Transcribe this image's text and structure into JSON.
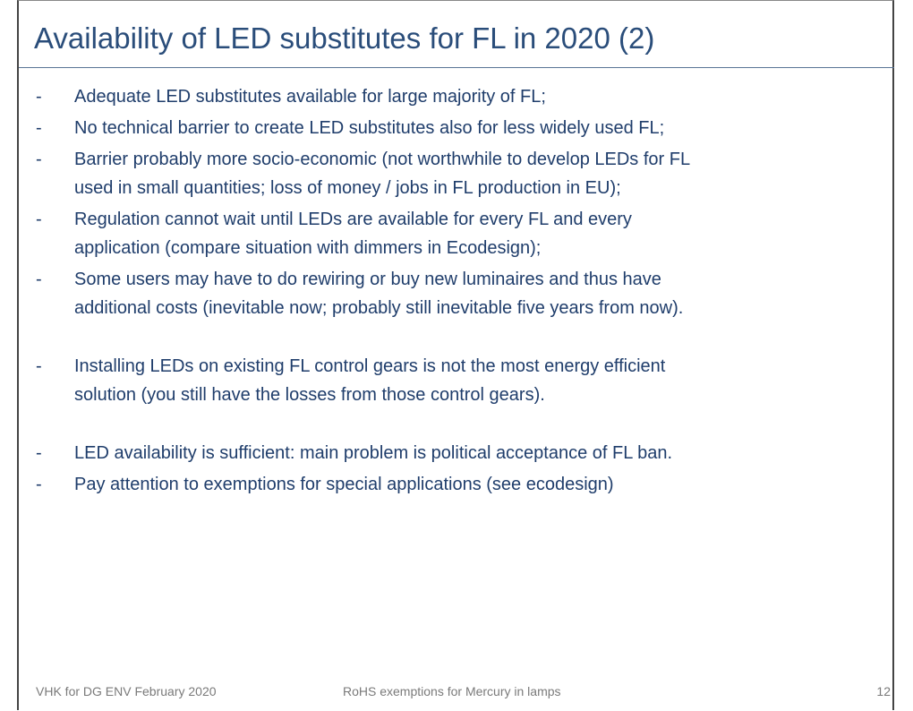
{
  "title": "Availability of LED substitutes for FL in 2020 (2)",
  "bullet": "-",
  "groups": [
    [
      {
        "lines": [
          "Adequate LED substitutes available for large majority of FL;"
        ]
      },
      {
        "lines": [
          "No technical barrier to create LED substitutes also for less widely used FL;"
        ]
      },
      {
        "lines": [
          "Barrier probably more socio-economic (not worthwhile to develop LEDs for FL",
          "used in small quantities; loss of money / jobs in FL production in EU);"
        ]
      },
      {
        "lines": [
          "Regulation cannot wait until LEDs are available for every FL and every",
          "application (compare situation with dimmers in Ecodesign);"
        ]
      },
      {
        "lines": [
          "Some users may have to do rewiring or buy new luminaires and thus have",
          "additional costs (inevitable now; probably still inevitable five years from now)."
        ]
      }
    ],
    [
      {
        "lines": [
          "Installing LEDs on existing FL control gears is not the most energy efficient",
          "solution (you still have the losses from those control gears)."
        ]
      }
    ],
    [
      {
        "lines": [
          "LED availability is sufficient: main problem is political acceptance of FL ban."
        ]
      },
      {
        "lines": [
          "Pay attention to exemptions for special applications (see ecodesign)"
        ]
      }
    ]
  ],
  "footer": {
    "left": "VHK for DG ENV February 2020",
    "center": "RoHS exemptions for Mercury in lamps",
    "page": "12"
  }
}
